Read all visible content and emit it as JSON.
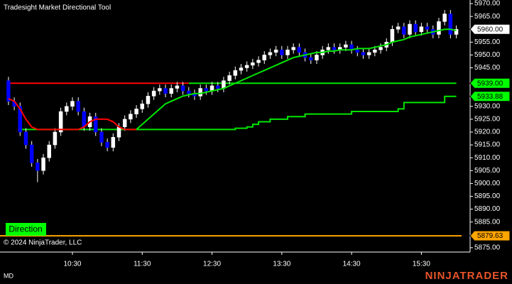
{
  "chart_data": {
    "type": "candlestick",
    "title": "Tradesight Market Directional Tool",
    "categories": [
      null,
      null,
      null,
      null,
      null,
      null,
      null,
      null,
      null,
      null,
      null,
      "10:30",
      null,
      null,
      null,
      null,
      null,
      null,
      null,
      null,
      null,
      null,
      null,
      "11:30",
      null,
      null,
      null,
      null,
      null,
      null,
      null,
      null,
      null,
      null,
      null,
      "12:30",
      null,
      null,
      null,
      null,
      null,
      null,
      null,
      null,
      null,
      null,
      null,
      "13:30",
      null,
      null,
      null,
      null,
      null,
      null,
      null,
      null,
      null,
      null,
      null,
      "14:30",
      null,
      null,
      null,
      null,
      null,
      null,
      null,
      null,
      null,
      null,
      null,
      "15:30",
      null,
      null,
      null,
      null,
      null,
      null
    ],
    "open": [
      5940,
      5932,
      5930,
      5920,
      5915,
      5908,
      5905,
      5910,
      5915,
      5920,
      5928,
      5930,
      5932,
      5928,
      5922,
      5926,
      5920,
      5916,
      5914,
      5918,
      5922,
      5925,
      5927,
      5929,
      5931,
      5934,
      5936,
      5937,
      5935,
      5937,
      5938,
      5936,
      5935,
      5934,
      5937,
      5936,
      5938,
      5937,
      5940,
      5942,
      5944,
      5945,
      5946,
      5947,
      5948,
      5950,
      5951,
      5952,
      5950,
      5952,
      5953,
      5951,
      5949,
      5948,
      5950,
      5952,
      5953,
      5952,
      5953,
      5954,
      5952,
      5951,
      5950,
      5951,
      5952,
      5953,
      5955,
      5960,
      5961,
      5958,
      5962,
      5959,
      5961,
      5960,
      5958,
      5963,
      5966,
      5958
    ],
    "high": [
      5941.5,
      5933.5,
      5931.5,
      5921.5,
      5916.5,
      5909.5,
      5911.5,
      5916.5,
      5921.5,
      5929.5,
      5931.5,
      5933.5,
      5933.5,
      5929.5,
      5927.5,
      5927.5,
      5921.5,
      5917.5,
      5919.5,
      5923.5,
      5926.5,
      5928.5,
      5930.5,
      5932.5,
      5935.5,
      5937.5,
      5938.5,
      5938.5,
      5938.5,
      5939.5,
      5939.5,
      5937.5,
      5936.5,
      5938.5,
      5938.5,
      5939.5,
      5939.5,
      5941.5,
      5943.5,
      5945.5,
      5946.5,
      5947.5,
      5948.5,
      5949.5,
      5951.5,
      5952.5,
      5953.5,
      5953.5,
      5953.5,
      5954.5,
      5954.5,
      5952.5,
      5950.5,
      5951.5,
      5953.5,
      5954.5,
      5954.5,
      5954.5,
      5955.5,
      5955.5,
      5953.5,
      5952.5,
      5952.5,
      5953.5,
      5954.5,
      5956.5,
      5961.5,
      5962.5,
      5962.5,
      5963.5,
      5963.5,
      5962.5,
      5962.5,
      5961.5,
      5964.5,
      5967.5,
      5967.5,
      5961.5
    ],
    "low": [
      5930.5,
      5928.5,
      5918.5,
      5913.5,
      5906.5,
      5900.5,
      5903.5,
      5908.5,
      5913.5,
      5918.5,
      5926.5,
      5928.5,
      5926.5,
      5920.5,
      5920.5,
      5918.5,
      5914.5,
      5912.5,
      5912.5,
      5916.5,
      5920.5,
      5923.5,
      5925.5,
      5927.5,
      5929.5,
      5932.5,
      5934.5,
      5933.5,
      5933.5,
      5935.5,
      5934.5,
      5933.5,
      5932.5,
      5932.5,
      5934.5,
      5934.5,
      5935.5,
      5935.5,
      5938.5,
      5940.5,
      5942.5,
      5943.5,
      5944.5,
      5945.5,
      5946.5,
      5948.5,
      5949.5,
      5948.5,
      5948.5,
      5950.5,
      5949.5,
      5947.5,
      5946.5,
      5946.5,
      5948.5,
      5950.5,
      5950.5,
      5950.5,
      5951.5,
      5950.5,
      5949.5,
      5948.5,
      5948.5,
      5949.5,
      5950.5,
      5951.5,
      5953.5,
      5958.5,
      5956.5,
      5956.5,
      5957.5,
      5957.5,
      5958.5,
      5956.5,
      5956.5,
      5961.5,
      5956.5,
      5956.5
    ],
    "close": [
      5932,
      5930,
      5920,
      5915,
      5908,
      5905,
      5910,
      5915,
      5920,
      5928,
      5930,
      5932,
      5928,
      5922,
      5926,
      5920,
      5916,
      5914,
      5918,
      5922,
      5925,
      5927,
      5929,
      5931,
      5934,
      5936,
      5937,
      5935,
      5937,
      5938,
      5936,
      5935,
      5934,
      5937,
      5936,
      5938,
      5937,
      5940,
      5942,
      5944,
      5945,
      5946,
      5947,
      5948,
      5950,
      5951,
      5952,
      5950,
      5952,
      5953,
      5951,
      5949,
      5948,
      5950,
      5952,
      5953,
      5952,
      5953,
      5954,
      5952,
      5951,
      5950,
      5951,
      5952,
      5953,
      5955,
      5960,
      5961,
      5958,
      5962,
      5959,
      5961,
      5960,
      5958,
      5963,
      5966,
      5958,
      5960
    ],
    "up_color": "#ffffff",
    "down_color": "#0000ff",
    "lines": [
      {
        "color": "#ff0000",
        "values": [
          5939,
          5939,
          5939,
          5939,
          5939,
          5939,
          5939,
          5939,
          5939,
          5939,
          5939,
          5939,
          5939,
          5939,
          5939,
          5939,
          5939,
          5939,
          5939,
          5939,
          5939,
          5939,
          5939,
          5939,
          5939,
          5939,
          5939,
          5939,
          5939,
          5939,
          5939,
          5939,
          null,
          null,
          null,
          null,
          null,
          null,
          null,
          null,
          null,
          null,
          null,
          null,
          null,
          null,
          null,
          null,
          null,
          null,
          null,
          null,
          null,
          null,
          null,
          null,
          null,
          null,
          null,
          null,
          null,
          null,
          null,
          null,
          null,
          null,
          null,
          null,
          null,
          null,
          null,
          null,
          null,
          null,
          null,
          null,
          null,
          null
        ]
      },
      {
        "color": "#00e600",
        "values": [
          null,
          null,
          null,
          null,
          null,
          null,
          null,
          null,
          null,
          null,
          null,
          null,
          null,
          null,
          null,
          null,
          null,
          null,
          null,
          null,
          null,
          null,
          null,
          null,
          null,
          null,
          null,
          null,
          null,
          null,
          null,
          5939,
          5939,
          5939,
          5939,
          5939,
          5939,
          5939,
          5939,
          5939,
          5939,
          5939,
          5939,
          5939,
          5939,
          5939,
          5939,
          5939,
          5939,
          5939,
          5939,
          5939,
          5939,
          5939,
          5939,
          5939,
          5939,
          5939,
          5939,
          5939,
          5939,
          5939,
          5939,
          5939,
          5939,
          5939,
          5939,
          5939,
          5939,
          5939,
          5939,
          5939,
          5939,
          5939,
          5939,
          5939,
          5939,
          5939
        ]
      },
      {
        "color": "#00e600",
        "step": true,
        "values": [
          null,
          null,
          5921,
          5921,
          5921,
          5921,
          5921,
          5921,
          5921,
          5921,
          5921,
          5921,
          5921,
          5921,
          5921,
          5921,
          5921,
          5921,
          5921,
          5921,
          5921,
          5921,
          5921,
          5921,
          5921,
          5921,
          5921,
          5921,
          5921,
          5921,
          5921,
          5921,
          5921,
          5921,
          5921,
          5921,
          5921,
          5921,
          5921,
          5921.5,
          5921.5,
          5922,
          5923,
          5924,
          5924,
          5925,
          5925,
          5925,
          5926,
          5926,
          5926,
          5927,
          5927,
          5927,
          5927,
          5927,
          5927,
          5927,
          5927,
          5928,
          5928,
          5928,
          5928,
          5928,
          5928,
          5928,
          5928,
          5929,
          5931.5,
          5931.5,
          5931.5,
          5931.5,
          5931.5,
          5931.5,
          5931.5,
          5933.88,
          5933.88,
          5933.88
        ]
      },
      {
        "color": "#ff0000",
        "values": [
          5933,
          5932,
          5929,
          5925,
          5922,
          5921,
          5921,
          5921,
          5921,
          5921,
          5921,
          5921,
          5921,
          5922,
          5924,
          5925,
          5925,
          5925,
          5924,
          5922,
          5921,
          5921,
          5921,
          null,
          null,
          null,
          null,
          null,
          null,
          null,
          null,
          null,
          null,
          null,
          null,
          null,
          null,
          null,
          null,
          null,
          null,
          null,
          null,
          null,
          null,
          null,
          null,
          null,
          null,
          null,
          null,
          null,
          null,
          null,
          null,
          null,
          null,
          null,
          null,
          null,
          null,
          null,
          null,
          null,
          null,
          null,
          null,
          null,
          null,
          null,
          null,
          null,
          null,
          null,
          null,
          null,
          null,
          null
        ]
      },
      {
        "color": "#00e600",
        "values": [
          null,
          null,
          null,
          null,
          null,
          null,
          null,
          null,
          null,
          null,
          null,
          null,
          null,
          null,
          null,
          null,
          null,
          null,
          null,
          null,
          null,
          null,
          5921,
          5923,
          5925,
          5927,
          5929,
          5931,
          5932,
          5933,
          5934,
          5934.5,
          5935,
          5935,
          5935.5,
          5936,
          5936.5,
          5937,
          5938,
          5939,
          5940,
          5941,
          5942,
          5943,
          5944,
          5945,
          5946,
          5947,
          5948,
          5949,
          5949.5,
          5950,
          5950.5,
          5951,
          5951,
          5951.5,
          5951.5,
          5952,
          5952,
          5952,
          5952.5,
          5952.5,
          5952.5,
          5953,
          5953.5,
          5954,
          5955,
          5955.5,
          5956,
          5957,
          5957.5,
          5958,
          5958.5,
          5959,
          5959.5,
          5960,
          5960,
          5959.5
        ]
      }
    ],
    "markers": [
      {
        "value": 5960,
        "label": "5960.00",
        "color": "#ffffff"
      },
      {
        "value": 5939,
        "label": "5939.00",
        "color": "#00ff00"
      },
      {
        "value": 5933.88,
        "label": "5933.88",
        "color": "#00ff00"
      },
      {
        "value": 5879.63,
        "label": "5879.63",
        "color": "#ffa500",
        "line": true
      }
    ],
    "ylim": [
      5873.3,
      5971.4
    ],
    "yticks": [
      {
        "value": 5875,
        "label": "5875.00"
      },
      {
        "value": 5885,
        "label": "5885.00"
      },
      {
        "value": 5890,
        "label": "5890.00"
      },
      {
        "value": 5895,
        "label": "5895.00"
      },
      {
        "value": 5900,
        "label": "5900.00"
      },
      {
        "value": 5905,
        "label": "5905.00"
      },
      {
        "value": 5910,
        "label": "5910.00"
      },
      {
        "value": 5915,
        "label": "5915.00"
      },
      {
        "value": 5920,
        "label": "5920.00"
      },
      {
        "value": 5925,
        "label": "5925.00"
      },
      {
        "value": 5930,
        "label": "5930.00"
      },
      {
        "value": 5945,
        "label": "5945.00"
      },
      {
        "value": 5950,
        "label": "5950.00"
      },
      {
        "value": 5955,
        "label": "5955.00"
      },
      {
        "value": 5965,
        "label": "5965.00"
      },
      {
        "value": 5970,
        "label": "5970.00"
      }
    ],
    "annotation": "Direction",
    "copyright": "© 2024 NinjaTrader, LLC"
  },
  "footer": {
    "instrument": "MD",
    "brand": "NINJATRADER"
  }
}
